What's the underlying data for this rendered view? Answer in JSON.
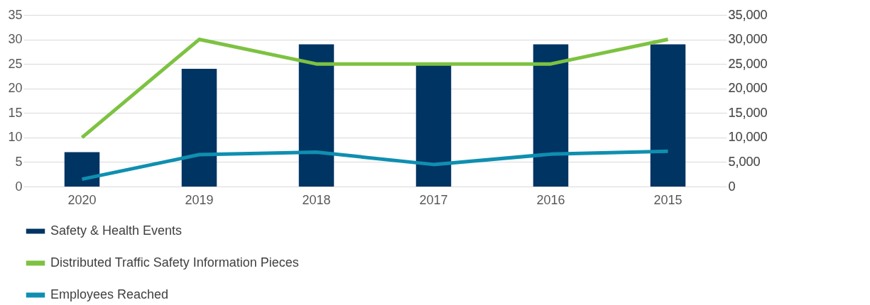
{
  "chart_data": {
    "type": "bar",
    "categories": [
      "2020",
      "2019",
      "2018",
      "2017",
      "2016",
      "2015"
    ],
    "series": [
      {
        "name": "Safety & Health Events",
        "color": "#003463",
        "values": [
          7,
          24,
          29,
          25,
          29,
          29
        ]
      },
      {
        "name": "Distributed Traffic Safety Information Pieces",
        "color": "#7dc242",
        "type": "line",
        "axis": "y2",
        "values": [
          10000,
          30000,
          25000,
          25000,
          25000,
          30000
        ]
      },
      {
        "name": "Employees Reached",
        "color": "#0f8fb0",
        "type": "line",
        "axis": "y2",
        "values": [
          1500,
          6500,
          7000,
          4500,
          6600,
          7200
        ]
      }
    ],
    "ylim": [
      0,
      35
    ],
    "yticks": [
      0,
      5,
      10,
      15,
      20,
      25,
      30,
      35
    ],
    "y2lim": [
      0,
      35000
    ],
    "y2ticks": [
      {
        "value": 0,
        "label": "0"
      },
      {
        "value": 5000,
        "label": "5,000"
      },
      {
        "value": 10000,
        "label": "10,000"
      },
      {
        "value": 15000,
        "label": "15,000"
      },
      {
        "value": 20000,
        "label": "20,000"
      },
      {
        "value": 25000,
        "label": "25,000"
      },
      {
        "value": 30000,
        "label": "30,000"
      },
      {
        "value": 35000,
        "label": "35,000"
      }
    ],
    "grid": "y",
    "legend": "bottom",
    "marker": "none",
    "line_style": "solid"
  }
}
